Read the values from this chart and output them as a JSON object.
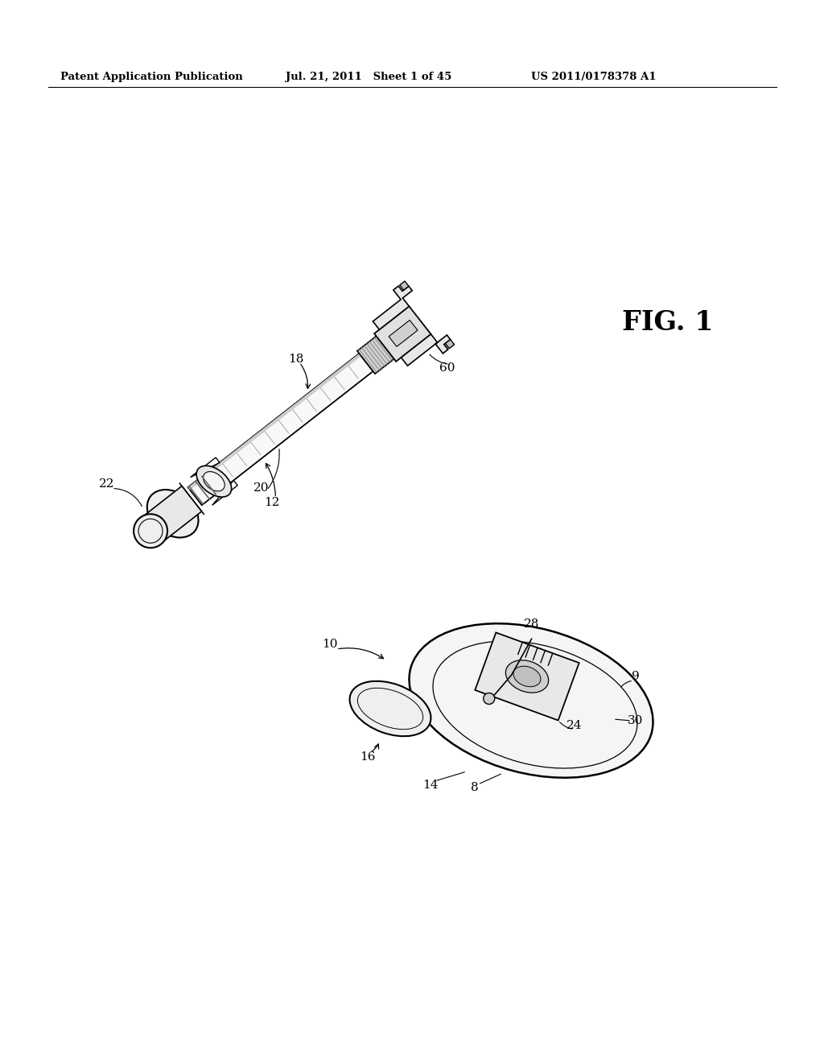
{
  "background_color": "#ffffff",
  "fig_width": 10.24,
  "fig_height": 13.2,
  "dpi": 100,
  "header_text": "Patent Application Publication",
  "header_date": "Jul. 21, 2011   Sheet 1 of 45",
  "header_patent": "US 2011/0178378 A1",
  "fig_label": "FIG. 1",
  "line_color": "#000000",
  "fill_light": "#f0f0f0",
  "fill_mid": "#d8d8d8",
  "fill_dark": "#b0b0b0"
}
